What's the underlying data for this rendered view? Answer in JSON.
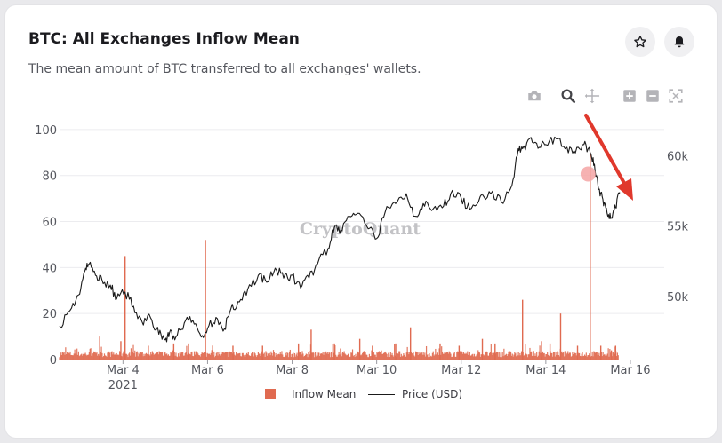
{
  "card": {
    "title": "BTC: All Exchanges Inflow Mean",
    "subtitle": "The mean amount of BTC transferred to all exchanges' wallets."
  },
  "header_buttons": [
    {
      "icon": "star-icon"
    },
    {
      "icon": "bell-icon"
    }
  ],
  "toolbar": [
    {
      "icon": "camera-icon",
      "active": false
    },
    {
      "icon": "zoom-icon",
      "active": true
    },
    {
      "icon": "pan-icon",
      "active": false
    },
    {
      "icon": "zoom-in-icon",
      "active": false
    },
    {
      "icon": "zoom-out-icon",
      "active": false
    },
    {
      "icon": "autoscale-icon",
      "active": false
    }
  ],
  "watermark": "CryptoQuant",
  "colors": {
    "bar": "#e06a50",
    "line": "#1a1a1a",
    "highlight": "#f4a5a5",
    "arrow": "#e0382c"
  },
  "chart_data": {
    "type": "bar",
    "x_unit": "day of March 2021",
    "x_range": [
      2.5,
      16.8
    ],
    "x_ticks": [
      {
        "x": 4,
        "label": "Mar 4"
      },
      {
        "x": 6,
        "label": "Mar 6"
      },
      {
        "x": 8,
        "label": "Mar 8"
      },
      {
        "x": 10,
        "label": "Mar 10"
      },
      {
        "x": 12,
        "label": "Mar 12"
      },
      {
        "x": 14,
        "label": "Mar 14"
      },
      {
        "x": 16,
        "label": "Mar 16"
      }
    ],
    "x_year_label": "2021",
    "y_left": {
      "range": [
        0,
        110
      ],
      "ticks": [
        0,
        20,
        40,
        60,
        80,
        100
      ]
    },
    "y_right": {
      "range": [
        45500,
        63500
      ],
      "ticks": [
        50000,
        55000,
        60000
      ],
      "tick_labels": [
        "50k",
        "55k",
        "60k"
      ]
    },
    "grid": true,
    "legend_position": "bottom-center",
    "series": [
      {
        "name": "Inflow Mean",
        "kind": "bar",
        "axis": "left",
        "baseline_level": 3,
        "spikes": [
          {
            "x": 3.45,
            "y": 10
          },
          {
            "x": 3.95,
            "y": 8
          },
          {
            "x": 4.05,
            "y": 45
          },
          {
            "x": 4.6,
            "y": 6
          },
          {
            "x": 5.2,
            "y": 7
          },
          {
            "x": 5.55,
            "y": 7
          },
          {
            "x": 5.95,
            "y": 52
          },
          {
            "x": 6.6,
            "y": 6
          },
          {
            "x": 7.3,
            "y": 6
          },
          {
            "x": 8.15,
            "y": 7
          },
          {
            "x": 8.45,
            "y": 13
          },
          {
            "x": 9.0,
            "y": 7
          },
          {
            "x": 9.6,
            "y": 9
          },
          {
            "x": 9.9,
            "y": 6
          },
          {
            "x": 10.45,
            "y": 7
          },
          {
            "x": 10.8,
            "y": 14
          },
          {
            "x": 11.5,
            "y": 7
          },
          {
            "x": 11.95,
            "y": 6
          },
          {
            "x": 12.5,
            "y": 9
          },
          {
            "x": 12.8,
            "y": 7
          },
          {
            "x": 13.45,
            "y": 26
          },
          {
            "x": 13.9,
            "y": 8
          },
          {
            "x": 14.1,
            "y": 7
          },
          {
            "x": 14.35,
            "y": 20
          },
          {
            "x": 14.75,
            "y": 6
          },
          {
            "x": 15.05,
            "y": 90
          },
          {
            "x": 15.3,
            "y": 6
          },
          {
            "x": 15.55,
            "y": 4
          },
          {
            "x": 15.65,
            "y": 6
          }
        ]
      },
      {
        "name": "Price (USD)",
        "kind": "line",
        "axis": "right",
        "x": [
          2.5,
          2.75,
          2.95,
          3.1,
          3.2,
          3.35,
          3.5,
          3.7,
          3.85,
          4.05,
          4.25,
          4.45,
          4.65,
          4.85,
          5.0,
          5.1,
          5.25,
          5.45,
          5.65,
          5.85,
          6.0,
          6.2,
          6.4,
          6.55,
          6.75,
          6.95,
          7.2,
          7.4,
          7.6,
          7.8,
          8.0,
          8.2,
          8.4,
          8.6,
          8.85,
          9.0,
          9.15,
          9.35,
          9.55,
          9.8,
          10.0,
          10.2,
          10.45,
          10.7,
          10.9,
          11.1,
          11.3,
          11.55,
          11.75,
          12.0,
          12.2,
          12.45,
          12.7,
          12.95,
          13.2,
          13.35,
          13.45,
          13.65,
          13.85,
          14.0,
          14.25,
          14.5,
          14.7,
          14.9,
          15.05,
          15.15,
          15.25,
          15.35,
          15.45,
          15.55,
          15.65,
          15.75
        ],
        "y": [
          47900,
          49000,
          50100,
          51800,
          52300,
          51500,
          51200,
          50800,
          49800,
          50300,
          49300,
          48200,
          48500,
          47300,
          46900,
          47400,
          47100,
          48100,
          48300,
          47100,
          47700,
          48500,
          47700,
          49100,
          49600,
          50500,
          51500,
          51000,
          52000,
          51300,
          51500,
          50600,
          51300,
          52300,
          53400,
          54900,
          54700,
          55700,
          55900,
          54800,
          54100,
          56000,
          56600,
          57300,
          55700,
          56600,
          56100,
          56300,
          57300,
          57000,
          56200,
          57100,
          57300,
          56700,
          57900,
          60500,
          60500,
          61300,
          60600,
          60800,
          61200,
          60600,
          60200,
          60800,
          60200,
          59400,
          57600,
          56900,
          55900,
          55600,
          56300,
          57400
        ]
      }
    ],
    "highlight_point": {
      "x": 15.0,
      "y": 58700
    }
  }
}
